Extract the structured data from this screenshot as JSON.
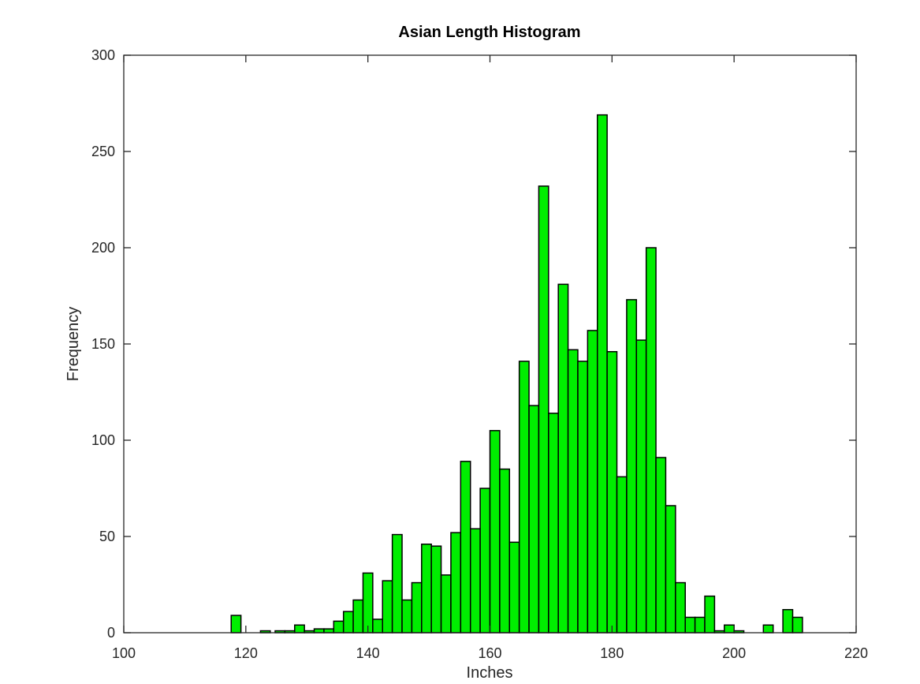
{
  "chart_data": {
    "type": "bar",
    "title": "Asian Length Histogram",
    "xlabel": "Inches",
    "ylabel": "Frequency",
    "xlim": [
      100,
      220
    ],
    "ylim": [
      0,
      300
    ],
    "xticks": [
      100,
      120,
      140,
      160,
      180,
      200,
      220
    ],
    "yticks": [
      0,
      50,
      100,
      150,
      200,
      250,
      300
    ],
    "grid": false,
    "bar_color": "#00ee00",
    "edge_color": "#000000",
    "bin_width": 1.6,
    "series": [
      {
        "bin_left": [
          117.6,
          122.4,
          124.8,
          126.4,
          128.0,
          129.6,
          131.2,
          132.8,
          134.4,
          136.0,
          137.6,
          139.2,
          140.8,
          142.4,
          144.0,
          145.6,
          147.2,
          148.8,
          150.4,
          152.0,
          153.6,
          155.2,
          156.8,
          158.4,
          160.0,
          161.6,
          163.2,
          164.8,
          166.4,
          168.0,
          169.6,
          171.2,
          172.8,
          174.4,
          176.0,
          177.6,
          179.2,
          180.8,
          182.4,
          184.0,
          185.6,
          187.2,
          188.8,
          190.4,
          192.0,
          193.6,
          195.2,
          196.8,
          198.4,
          200.0,
          204.8,
          208.0,
          209.6
        ],
        "values": [
          9,
          1,
          1,
          1,
          4,
          1,
          2,
          2,
          6,
          11,
          17,
          31,
          7,
          27,
          51,
          17,
          26,
          46,
          45,
          30,
          52,
          89,
          54,
          75,
          105,
          85,
          47,
          141,
          118,
          232,
          114,
          181,
          147,
          141,
          157,
          269,
          146,
          81,
          173,
          152,
          200,
          91,
          66,
          26,
          8,
          8,
          19,
          1,
          4,
          1,
          4,
          12,
          8
        ]
      }
    ]
  }
}
